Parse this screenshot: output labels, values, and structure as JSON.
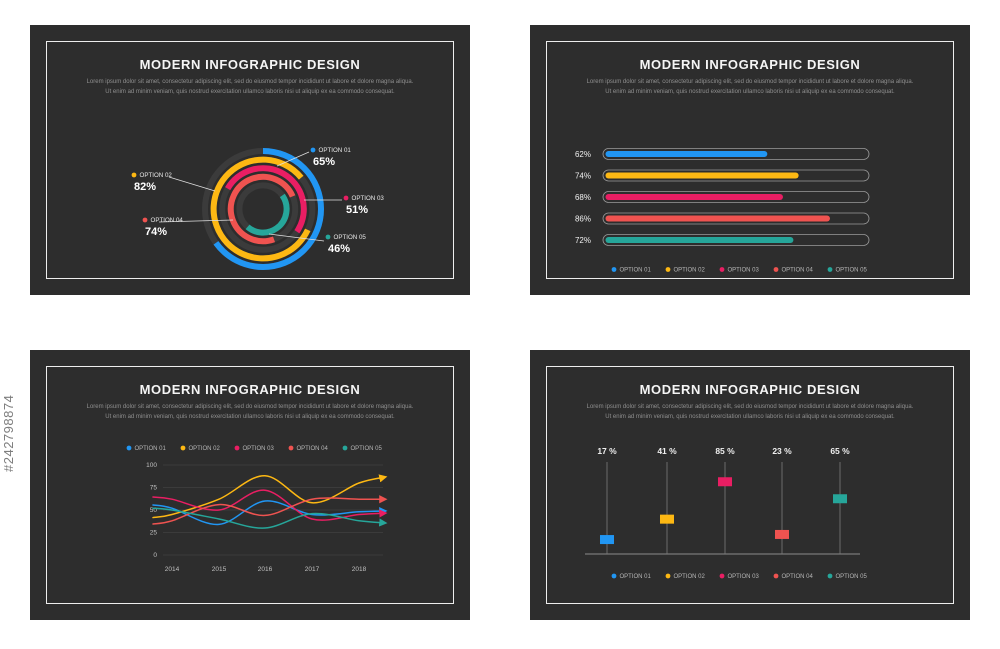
{
  "watermark": "#242798874",
  "slide_title": "MODERN INFOGRAPHIC DESIGN",
  "body_line1": "Lorem ipsum dolor sit amet, consectetur adipiscing elit, sed do eiusmod tempor incididunt ut labore et dolore magna aliqua.",
  "body_line2": "Ut enim ad minim veniam, quis nostrud exercitation ullamco laboris nisi ut aliquip ex ea commodo consequat.",
  "palette": {
    "option1": "#2196f3",
    "option2": "#fdb813",
    "option3": "#e91e63",
    "option4": "#ef5350",
    "option5": "#26a69a",
    "slide_background": "#2d2d2d",
    "frame_border": "#ededed"
  },
  "legend_labels": [
    "OPTION 01",
    "OPTION 02",
    "OPTION 03",
    "OPTION 04",
    "OPTION 05"
  ],
  "chart_data": [
    {
      "type": "pie",
      "variant": "concentric-rings",
      "title": "MODERN INFOGRAPHIC DESIGN",
      "categories": [
        "OPTION 01",
        "OPTION 02",
        "OPTION 03",
        "OPTION 04",
        "OPTION 05"
      ],
      "values": [
        65,
        82,
        51,
        74,
        46
      ],
      "value_suffix": "%",
      "colors": [
        "#2196f3",
        "#fdb813",
        "#e91e63",
        "#ef5350",
        "#26a69a"
      ]
    },
    {
      "type": "bar",
      "orientation": "horizontal",
      "title": "MODERN INFOGRAPHIC DESIGN",
      "categories": [
        "OPTION 01",
        "OPTION 02",
        "OPTION 03",
        "OPTION 04",
        "OPTION 05"
      ],
      "values": [
        62,
        74,
        68,
        86,
        72
      ],
      "value_suffix": "%",
      "xlim": [
        0,
        100
      ],
      "legend_position": "bottom",
      "colors": [
        "#2196f3",
        "#fdb813",
        "#e91e63",
        "#ef5350",
        "#26a69a"
      ]
    },
    {
      "type": "line",
      "title": "MODERN INFOGRAPHIC DESIGN",
      "x": [
        "2014",
        "2015",
        "2016",
        "2017",
        "2018"
      ],
      "series": [
        {
          "name": "OPTION 01",
          "values": [
            52,
            34,
            60,
            45,
            48
          ]
        },
        {
          "name": "OPTION 02",
          "values": [
            45,
            62,
            88,
            58,
            80
          ]
        },
        {
          "name": "OPTION 03",
          "values": [
            62,
            50,
            72,
            40,
            45
          ]
        },
        {
          "name": "OPTION 04",
          "values": [
            38,
            56,
            44,
            62,
            62
          ]
        },
        {
          "name": "OPTION 05",
          "values": [
            50,
            40,
            30,
            46,
            38
          ]
        }
      ],
      "ylim": [
        0,
        100
      ],
      "yticks": [
        0,
        25,
        50,
        75,
        100
      ],
      "grid": true,
      "legend_position": "top",
      "colors": [
        "#2196f3",
        "#fdb813",
        "#e91e63",
        "#ef5350",
        "#26a69a"
      ]
    },
    {
      "type": "stem",
      "title": "MODERN INFOGRAPHIC DESIGN",
      "categories": [
        "OPTION 01",
        "OPTION 02",
        "OPTION 03",
        "OPTION 04",
        "OPTION 05"
      ],
      "values": [
        17,
        41,
        85,
        23,
        65
      ],
      "value_suffix": " %",
      "legend_position": "bottom",
      "colors": [
        "#2196f3",
        "#fdb813",
        "#e91e63",
        "#ef5350",
        "#26a69a"
      ]
    }
  ]
}
